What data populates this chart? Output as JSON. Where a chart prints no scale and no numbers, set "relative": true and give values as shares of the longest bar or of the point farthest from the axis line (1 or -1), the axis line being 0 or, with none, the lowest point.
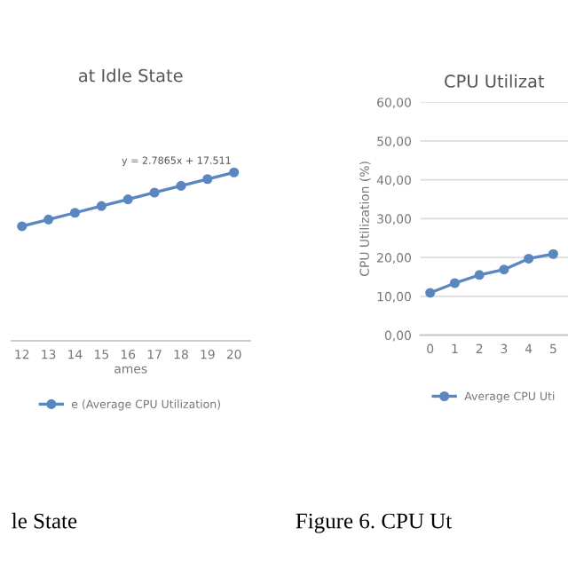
{
  "chart_data": [
    {
      "type": "line",
      "title": "at Idle State",
      "xlabel": "ames",
      "relative": true,
      "tick_labels": "x",
      "grid": false,
      "marker": "circle",
      "legend": "bottom",
      "categories": [
        "12",
        "13",
        "14",
        "15",
        "16",
        "17",
        "18",
        "19",
        "20"
      ],
      "series": [
        {
          "name": "e (Average CPU Utilization)",
          "color": "#5b87c0",
          "values": [
            0.68,
            0.72,
            0.76,
            0.8,
            0.84,
            0.88,
            0.92,
            0.96,
            1.0
          ]
        }
      ],
      "annotations": [
        "y = 2.7865x + 17.511",
        "le State"
      ]
    },
    {
      "type": "line",
      "title": "CPU Utilizat",
      "ylabel": "CPU Utilization (%)",
      "grid": "y",
      "marker": "circle",
      "legend": "bottom",
      "categories": [
        "0",
        "1",
        "2",
        "3",
        "4",
        "5"
      ],
      "ylim": [
        0,
        60
      ],
      "yticks": [
        {
          "value": 0,
          "label": "0,00"
        },
        {
          "value": 10,
          "label": "10,00"
        },
        {
          "value": 20,
          "label": "20,00"
        },
        {
          "value": 30,
          "label": "30,00"
        },
        {
          "value": 40,
          "label": "40,00"
        },
        {
          "value": 50,
          "label": "50,00"
        },
        {
          "value": 60,
          "label": "60,00"
        }
      ],
      "series": [
        {
          "name": "Average CPU Uti",
          "color": "#5b87c0",
          "values": [
            10.9,
            13.4,
            15.5,
            16.9,
            19.7,
            20.9
          ]
        }
      ],
      "annotations": [
        "Figure 6. CPU Ut"
      ]
    }
  ]
}
